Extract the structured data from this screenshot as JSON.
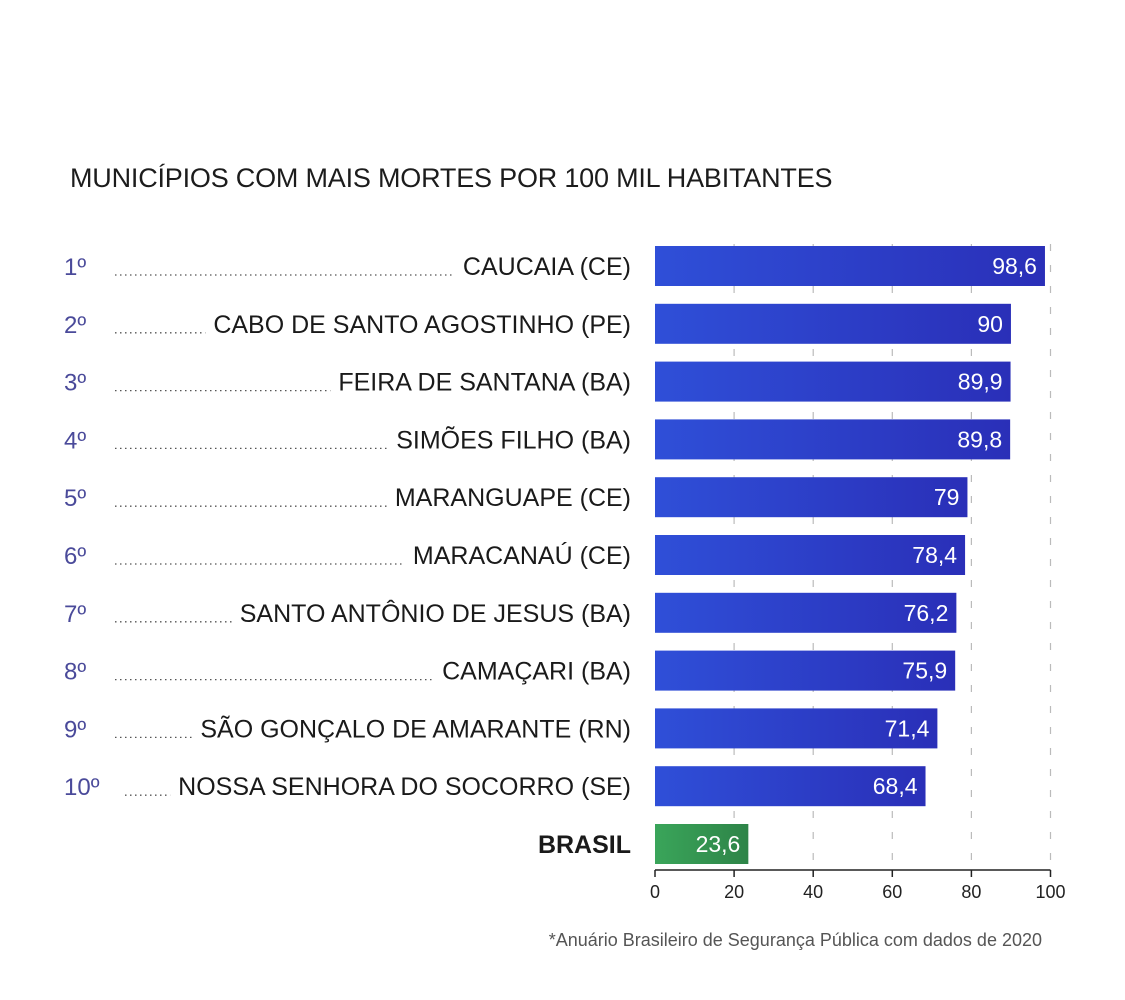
{
  "chart_data": {
    "type": "bar",
    "orientation": "horizontal",
    "title": "MUNICÍPIOS COM MAIS MORTES POR 100 MIL HABITANTES",
    "ranks": [
      "1º",
      "2º",
      "3º",
      "4º",
      "5º",
      "6º",
      "7º",
      "8º",
      "9º",
      "10º",
      ""
    ],
    "categories": [
      "CAUCAIA (CE)",
      "CABO DE SANTO AGOSTINHO (PE)",
      "FEIRA DE SANTANA (BA)",
      "SIMÕES FILHO (BA)",
      "MARANGUAPE (CE)",
      "MARACANAÚ (CE)",
      "SANTO ANTÔNIO DE JESUS (BA)",
      "CAMAÇARI (BA)",
      "SÃO GONÇALO DE AMARANTE (RN)",
      "NOSSA SENHORA DO SOCORRO (SE)",
      "BRASIL"
    ],
    "values": [
      98.6,
      90,
      89.9,
      89.8,
      79,
      78.4,
      76.2,
      75.9,
      71.4,
      68.4,
      23.6
    ],
    "value_labels": [
      "98,6",
      "90",
      "89,9",
      "89,8",
      "79",
      "78,4",
      "76,2",
      "75,9",
      "71,4",
      "68,4",
      "23,6"
    ],
    "highlight_index": 10,
    "xlim": [
      0,
      100
    ],
    "xticks": [
      0,
      20,
      40,
      60,
      80,
      100
    ],
    "grid": true,
    "colors": {
      "bar": "#2f4fd8",
      "bar_dark": "#2a2fb8",
      "highlight": "#3aa55a",
      "highlight_dark": "#2e8448"
    }
  },
  "source_note": "*Anuário Brasileiro de Segurança Pública com dados de 2020"
}
